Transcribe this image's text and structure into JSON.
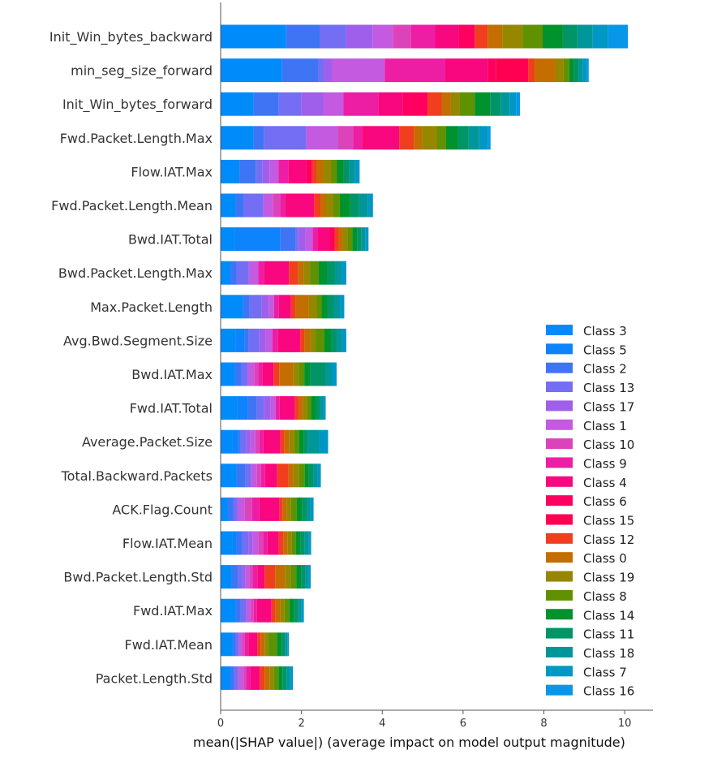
{
  "chart_data": {
    "type": "bar",
    "orientation": "horizontal",
    "stacked": true,
    "xlabel": "mean(|SHAP value|) (average impact on model output magnitude)",
    "xlim": [
      0,
      10.7
    ],
    "xticks": [
      0,
      2,
      4,
      6,
      8,
      10
    ],
    "grid": false,
    "legend_position": "bottom-right",
    "categories": [
      "Init_Win_bytes_backward",
      "min_seg_size_forward",
      "Init_Win_bytes_forward",
      "Fwd.Packet.Length.Max",
      "Flow.IAT.Max",
      "Fwd.Packet.Length.Mean",
      "Bwd.IAT.Total",
      "Bwd.Packet.Length.Max",
      "Max.Packet.Length",
      "Avg.Bwd.Segment.Size",
      "Bwd.IAT.Max",
      "Fwd.IAT.Total",
      "Average.Packet.Size",
      "Total.Backward.Packets",
      "ACK.Flag.Count",
      "Flow.IAT.Mean",
      "Bwd.Packet.Length.Std",
      "Fwd.IAT.Max",
      "Fwd.IAT.Mean",
      "Packet.Length.Std"
    ],
    "series": [
      {
        "name": "Class 3",
        "color": "#008bfb",
        "values": [
          1.62,
          1.52,
          0.82,
          0.82,
          0.47,
          0.38,
          0.36,
          0.25,
          0.56,
          0.38,
          0.36,
          0.42,
          0.3,
          0.4,
          0.18,
          0.3,
          0.27,
          0.38,
          0.3,
          0.25
        ]
      },
      {
        "name": "Class 5",
        "color": "#0d83fd",
        "values": [
          0.0,
          0.0,
          0.0,
          0.0,
          0.0,
          0.0,
          1.12,
          0.0,
          0.0,
          0.22,
          0.0,
          0.26,
          0.14,
          0.0,
          0.0,
          0.1,
          0.0,
          0.0,
          0.0,
          0.0
        ]
      },
      {
        "name": "Class 2",
        "color": "#3f75f5",
        "values": [
          0.84,
          0.9,
          0.62,
          0.26,
          0.4,
          0.2,
          0.38,
          0.15,
          0.16,
          0.1,
          0.16,
          0.22,
          0.06,
          0.22,
          0.14,
          0.14,
          0.16,
          0.12,
          0.08,
          0.08
        ]
      },
      {
        "name": "Class 13",
        "color": "#746ef4",
        "values": [
          0.65,
          0.14,
          0.55,
          1.04,
          0.16,
          0.48,
          0.06,
          0.3,
          0.3,
          0.26,
          0.16,
          0.18,
          0.14,
          0.14,
          0.1,
          0.15,
          0.12,
          0.14,
          0.07,
          0.1
        ]
      },
      {
        "name": "Class 17",
        "color": "#a05feb",
        "values": [
          0.65,
          0.2,
          0.55,
          0.0,
          0.18,
          0.0,
          0.18,
          0.0,
          0.18,
          0.16,
          0.0,
          0.16,
          0.1,
          0.0,
          0.0,
          0.1,
          0.06,
          0.0,
          0.0,
          0.0
        ]
      },
      {
        "name": "Class 1",
        "color": "#c35ae0",
        "values": [
          0.5,
          1.3,
          0.5,
          0.78,
          0.22,
          0.23,
          0.18,
          0.23,
          0.12,
          0.16,
          0.15,
          0.12,
          0.12,
          0.14,
          0.18,
          0.14,
          0.1,
          0.1,
          0.08,
          0.14
        ]
      },
      {
        "name": "Class 10",
        "color": "#dc43ba",
        "values": [
          0.45,
          0.0,
          0.0,
          0.38,
          0.0,
          0.18,
          0.0,
          0.0,
          0.0,
          0.0,
          0.1,
          0.0,
          0.1,
          0.1,
          0.18,
          0.12,
          0.08,
          0.08,
          0.07,
          0.06
        ]
      },
      {
        "name": "Class 9",
        "color": "#ed1da4",
        "values": [
          0.6,
          1.5,
          0.86,
          0.22,
          0.25,
          0.12,
          0.12,
          0.14,
          0.12,
          0.14,
          0.1,
          0.1,
          0.1,
          0.1,
          0.18,
          0.11,
          0.12,
          0.08,
          0.09,
          0.1
        ]
      },
      {
        "name": "Class 4",
        "color": "#f8077e",
        "values": [
          0.58,
          1.05,
          0.6,
          0.92,
          0.44,
          0.72,
          0.3,
          0.62,
          0.3,
          0.55,
          0.28,
          0.38,
          0.42,
          0.3,
          0.5,
          0.28,
          0.18,
          0.36,
          0.22,
          0.24
        ]
      },
      {
        "name": "Class 6",
        "color": "#ff0060",
        "values": [
          0.4,
          0.2,
          0.62,
          0.0,
          0.14,
          0.0,
          0.12,
          0.0,
          0.0,
          0.0,
          0.0,
          0.0,
          0.0,
          0.0,
          0.0,
          0.0,
          0.0,
          0.0,
          0.0,
          0.0
        ]
      },
      {
        "name": "Class 15",
        "color": "#ff0052",
        "values": [
          0.0,
          0.8,
          0.0,
          0.0,
          0.0,
          0.0,
          0.0,
          0.0,
          0.0,
          0.0,
          0.0,
          0.0,
          0.0,
          0.0,
          0.0,
          0.0,
          0.0,
          0.0,
          0.0,
          0.0
        ]
      },
      {
        "name": "Class 12",
        "color": "#f03e1e",
        "values": [
          0.32,
          0.16,
          0.35,
          0.36,
          0.12,
          0.16,
          0.1,
          0.22,
          0.12,
          0.1,
          0.14,
          0.1,
          0.1,
          0.28,
          0.08,
          0.12,
          0.26,
          0.1,
          0.08,
          0.12
        ]
      },
      {
        "name": "Class 0",
        "color": "#c46d00",
        "values": [
          0.36,
          0.52,
          0.22,
          0.2,
          0.16,
          0.14,
          0.1,
          0.14,
          0.32,
          0.14,
          0.34,
          0.1,
          0.12,
          0.12,
          0.1,
          0.1,
          0.24,
          0.12,
          0.1,
          0.12
        ]
      },
      {
        "name": "Class 19",
        "color": "#968600",
        "values": [
          0.5,
          0.2,
          0.22,
          0.38,
          0.2,
          0.18,
          0.12,
          0.16,
          0.2,
          0.14,
          0.14,
          0.1,
          0.12,
          0.14,
          0.1,
          0.1,
          0.14,
          0.1,
          0.08,
          0.1
        ]
      },
      {
        "name": "Class 8",
        "color": "#5f9100",
        "values": [
          0.5,
          0.14,
          0.38,
          0.22,
          0.14,
          0.16,
          0.12,
          0.22,
          0.12,
          0.22,
          0.14,
          0.1,
          0.12,
          0.14,
          0.14,
          0.1,
          0.14,
          0.12,
          0.22,
          0.12
        ]
      },
      {
        "name": "Class 14",
        "color": "#00922d",
        "values": [
          0.5,
          0.12,
          0.38,
          0.3,
          0.16,
          0.26,
          0.12,
          0.2,
          0.14,
          0.16,
          0.14,
          0.12,
          0.12,
          0.1,
          0.14,
          0.12,
          0.12,
          0.12,
          0.12,
          0.1
        ]
      },
      {
        "name": "Class 11",
        "color": "#009466",
        "values": [
          0.36,
          0.12,
          0.26,
          0.26,
          0.14,
          0.22,
          0.1,
          0.2,
          0.16,
          0.14,
          0.38,
          0.1,
          0.1,
          0.12,
          0.12,
          0.1,
          0.1,
          0.1,
          0.08,
          0.1
        ]
      },
      {
        "name": "Class 18",
        "color": "#00969a",
        "values": [
          0.38,
          0.1,
          0.22,
          0.26,
          0.14,
          0.22,
          0.1,
          0.16,
          0.16,
          0.14,
          0.16,
          0.08,
          0.28,
          0.1,
          0.08,
          0.1,
          0.08,
          0.08,
          0.06,
          0.08
        ]
      },
      {
        "name": "Class 7",
        "color": "#0097c5",
        "values": [
          0.38,
          0.1,
          0.16,
          0.22,
          0.12,
          0.12,
          0.08,
          0.12,
          0.1,
          0.1,
          0.12,
          0.06,
          0.22,
          0.08,
          0.08,
          0.06,
          0.06,
          0.06,
          0.04,
          0.08
        ]
      },
      {
        "name": "Class 16",
        "color": "#0896e9",
        "values": [
          0.49,
          0.04,
          0.1,
          0.06,
          0.0,
          0.0,
          0.0,
          0.0,
          0.0,
          0.0,
          0.0,
          0.0,
          0.0,
          0.0,
          0.0,
          0.0,
          0.0,
          0.0,
          0.0,
          0.0
        ]
      }
    ]
  }
}
